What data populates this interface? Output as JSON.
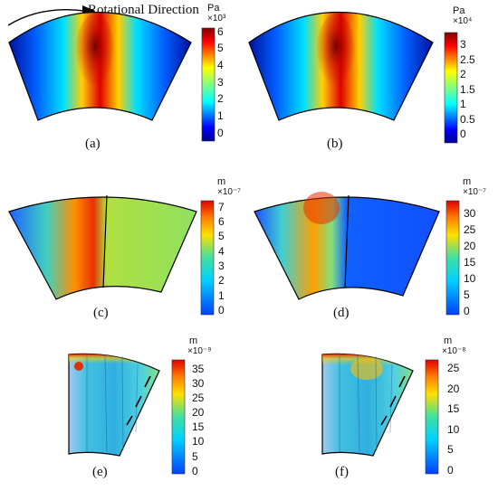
{
  "rotation_label": "Rotational Direction",
  "panels": [
    {
      "id": "a",
      "caption": "(a)",
      "unit": "Pa",
      "exponent": "×10³",
      "ticks": [
        "6",
        "5",
        "4",
        "3",
        "2",
        "1",
        "0"
      ],
      "range": [
        -0.5,
        6.2
      ]
    },
    {
      "id": "b",
      "caption": "(b)",
      "unit": "Pa",
      "exponent": "×10⁴",
      "ticks": [
        "3",
        "2.5",
        "2",
        "1.5",
        "1",
        "0.5",
        "0"
      ],
      "range": [
        -0.3,
        3.4
      ]
    },
    {
      "id": "c",
      "caption": "(c)",
      "unit": "m",
      "exponent": "×10⁻⁷",
      "ticks": [
        "7",
        "6",
        "5",
        "4",
        "3",
        "2",
        "1",
        "0"
      ],
      "range": [
        -0.3,
        7.4
      ]
    },
    {
      "id": "d",
      "caption": "(d)",
      "unit": "m",
      "exponent": "×10⁻⁷",
      "ticks": [
        "30",
        "25",
        "20",
        "15",
        "10",
        "5",
        "0"
      ],
      "range": [
        -1,
        34
      ]
    },
    {
      "id": "e",
      "caption": "(e)",
      "unit": "m",
      "exponent": "×10⁻⁹",
      "ticks": [
        "35",
        "30",
        "25",
        "20",
        "15",
        "10",
        "5",
        "0"
      ],
      "range": [
        -1,
        38
      ]
    },
    {
      "id": "f",
      "caption": "(f)",
      "unit": "m",
      "exponent": "×10⁻⁸",
      "ticks": [
        "25",
        "20",
        "15",
        "10",
        "5",
        "0"
      ],
      "range": [
        -1,
        27
      ]
    }
  ]
}
